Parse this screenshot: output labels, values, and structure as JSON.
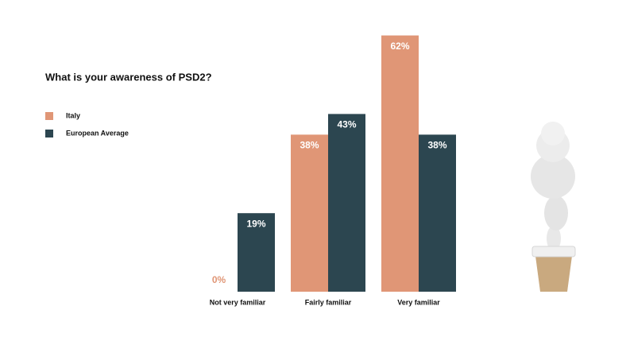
{
  "chart_data": {
    "type": "bar",
    "title": "What is your awareness of PSD2?",
    "categories": [
      "Not very familiar",
      "Fairly familiar",
      "Very familiar"
    ],
    "series": [
      {
        "name": "Italy",
        "color": "#e09676",
        "values": [
          0,
          38,
          62
        ],
        "value_labels": [
          "0%",
          "38%",
          "62%"
        ]
      },
      {
        "name": "European Average",
        "color": "#2c4650",
        "values": [
          19,
          43,
          38
        ],
        "value_labels": [
          "19%",
          "43%",
          "38%"
        ]
      }
    ]
  }
}
